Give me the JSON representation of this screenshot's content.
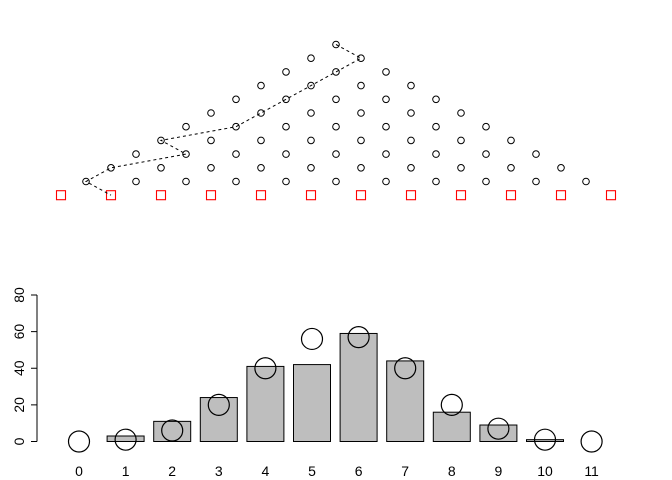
{
  "chart_data": [
    {
      "type": "scatter",
      "title": "",
      "xlabel": "",
      "ylabel": "",
      "axes": "none",
      "peg_rows": 11,
      "peg_symbol": "open-circle",
      "bins": [
        0,
        1,
        2,
        3,
        4,
        5,
        6,
        7,
        8,
        9,
        10,
        11
      ],
      "bin_symbol": "open-square",
      "bin_color": "#ff0000",
      "path_style": "dashed",
      "path": [
        {
          "row": 0,
          "index": 0
        },
        {
          "row": 1,
          "index": 1
        },
        {
          "row": 2,
          "index": 1
        },
        {
          "row": 3,
          "index": 1
        },
        {
          "row": 4,
          "index": 1
        },
        {
          "row": 5,
          "index": 1
        },
        {
          "row": 6,
          "index": 1
        },
        {
          "row": 7,
          "index": 0
        },
        {
          "row": 8,
          "index": 1
        },
        {
          "row": 9,
          "index": 0
        },
        {
          "row": 10,
          "index": 0
        },
        {
          "row": 11,
          "index": 1
        }
      ]
    },
    {
      "type": "bar",
      "title": "",
      "xlabel": "",
      "ylabel": "",
      "categories": [
        "0",
        "1",
        "2",
        "3",
        "4",
        "5",
        "6",
        "7",
        "8",
        "9",
        "10",
        "11"
      ],
      "series": [
        {
          "kind": "bar",
          "values": [
            0,
            3,
            11,
            24,
            41,
            42,
            59,
            44,
            16,
            9,
            1,
            0
          ]
        },
        {
          "kind": "circle",
          "values": [
            0,
            1,
            6,
            20,
            40,
            56,
            57,
            40,
            20,
            7,
            1,
            0
          ]
        }
      ],
      "ylim": [
        0,
        80
      ],
      "yticks": [
        0,
        20,
        40,
        60,
        80
      ],
      "bar_color": "#bebebe",
      "grid": false
    }
  ]
}
